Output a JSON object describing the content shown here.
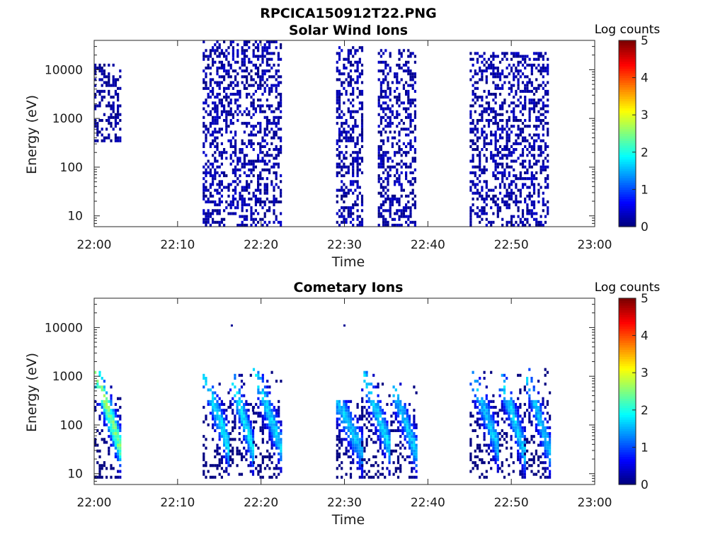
{
  "figure_title": "RPCICA150912T22.PNG",
  "chart_data": [
    {
      "type": "heatmap",
      "title": "Solar Wind Ions",
      "xlabel": "Time",
      "ylabel": "Energy (eV)",
      "x_ticks": [
        "22:00",
        "22:10",
        "22:20",
        "22:30",
        "22:40",
        "22:50",
        "23:00"
      ],
      "y_ticks": [
        "10",
        "100",
        "1000",
        "10000"
      ],
      "y_scale": "log",
      "ylim": [
        6,
        40000
      ],
      "xlim_minutes": [
        0,
        60
      ],
      "colorbar": {
        "label": "Log counts",
        "ticks": [
          "0",
          "1",
          "2",
          "3",
          "4",
          "5"
        ],
        "range": [
          0,
          5
        ],
        "colormap": "jet"
      },
      "bursts": [
        {
          "start_min": 0.0,
          "end_min": 3.2,
          "e_min": 300,
          "e_max": 13000,
          "peak_log_counts": 0.3
        },
        {
          "start_min": 13.0,
          "end_min": 22.5,
          "e_min": 6,
          "e_max": 38000,
          "peak_log_counts": 0.4
        },
        {
          "start_min": 29.0,
          "end_min": 32.0,
          "e_min": 6,
          "e_max": 27000,
          "peak_log_counts": 0.4
        },
        {
          "start_min": 34.0,
          "end_min": 38.5,
          "e_min": 6,
          "e_max": 25000,
          "peak_log_counts": 0.4
        },
        {
          "start_min": 45.0,
          "end_min": 54.5,
          "e_min": 6,
          "e_max": 21000,
          "peak_log_counts": 0.4
        }
      ]
    },
    {
      "type": "heatmap",
      "title": "Cometary Ions",
      "xlabel": "Time",
      "ylabel": "Energy (eV)",
      "x_ticks": [
        "22:00",
        "22:10",
        "22:20",
        "22:30",
        "22:40",
        "22:50",
        "23:00"
      ],
      "y_ticks": [
        "10",
        "100",
        "1000",
        "10000"
      ],
      "y_scale": "log",
      "ylim": [
        6,
        40000
      ],
      "xlim_minutes": [
        0,
        60
      ],
      "colorbar": {
        "label": "Log counts",
        "ticks": [
          "0",
          "1",
          "2",
          "3",
          "4",
          "5"
        ],
        "range": [
          0,
          5
        ],
        "colormap": "jet"
      },
      "bursts": [
        {
          "start_min": 0.0,
          "end_min": 3.2,
          "e_min": 7,
          "e_max": 1200,
          "peak_log_counts": 2.8
        },
        {
          "start_min": 13.0,
          "end_min": 16.2,
          "e_min": 7,
          "e_max": 1100,
          "peak_log_counts": 2.0
        },
        {
          "start_min": 16.2,
          "end_min": 19.0,
          "e_min": 7,
          "e_max": 1100,
          "peak_log_counts": 2.0
        },
        {
          "start_min": 19.0,
          "end_min": 22.5,
          "e_min": 7,
          "e_max": 1300,
          "peak_log_counts": 1.9
        },
        {
          "start_min": 29.0,
          "end_min": 32.0,
          "e_min": 7,
          "e_max": 300,
          "peak_log_counts": 1.8
        },
        {
          "start_min": 32.0,
          "end_min": 35.5,
          "e_min": 7,
          "e_max": 1300,
          "peak_log_counts": 1.9
        },
        {
          "start_min": 35.5,
          "end_min": 38.5,
          "e_min": 7,
          "e_max": 700,
          "peak_log_counts": 1.8
        },
        {
          "start_min": 45.0,
          "end_min": 48.5,
          "e_min": 7,
          "e_max": 1200,
          "peak_log_counts": 1.8
        },
        {
          "start_min": 48.5,
          "end_min": 51.5,
          "e_min": 7,
          "e_max": 1000,
          "peak_log_counts": 1.9
        },
        {
          "start_min": 51.5,
          "end_min": 54.5,
          "e_min": 7,
          "e_max": 1300,
          "peak_log_counts": 1.8
        }
      ],
      "isolated_points": [
        {
          "time_min": 16.5,
          "energy": 11000
        },
        {
          "time_min": 30.0,
          "energy": 11000
        }
      ]
    }
  ]
}
